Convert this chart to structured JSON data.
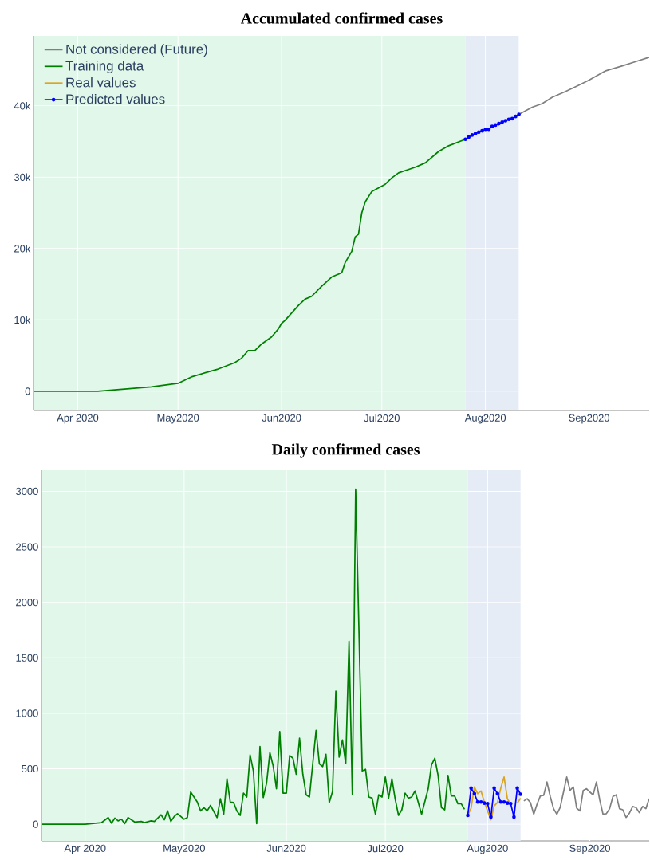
{
  "chart_data": [
    {
      "type": "line",
      "title": "Accumulated confirmed cases",
      "xlim": [
        "2020-03-19",
        "2020-09-19"
      ],
      "xticks": [
        {
          "value": "2020-04-01",
          "label": "Apr 2020"
        },
        {
          "value": "2020-05-01",
          "label": "May2020"
        },
        {
          "value": "2020-06-01",
          "label": "Jun2020"
        },
        {
          "value": "2020-07-01",
          "label": "Jul2020"
        },
        {
          "value": "2020-08-01",
          "label": "Aug2020"
        },
        {
          "value": "2020-09-01",
          "label": "Sep2020"
        }
      ],
      "ylim": [
        -2700,
        49800
      ],
      "yticks": [
        0,
        {
          "value": 10000,
          "label": "10k"
        },
        {
          "value": 20000,
          "label": "20k"
        },
        {
          "value": 30000,
          "label": "30k"
        },
        {
          "value": 40000,
          "label": "40k"
        }
      ],
      "grid": true,
      "legend": "top left",
      "bands": [
        {
          "axis": "x",
          "from": "2020-03-19",
          "to": "2020-07-26",
          "color": "#e0f7ea"
        },
        {
          "axis": "x",
          "from": "2020-07-26",
          "to": "2020-08-11",
          "color": "#e5ecf6"
        }
      ],
      "series": [
        {
          "name": "Not considered  (Future)",
          "color": "#808080",
          "marker": "none",
          "x": [
            "2020-08-11",
            "2020-08-15",
            "2020-08-18",
            "2020-08-21",
            "2020-08-25",
            "2020-08-29",
            "2020-09-01",
            "2020-09-06",
            "2020-09-11",
            "2020-09-15",
            "2020-09-19"
          ],
          "values": [
            38800,
            39800,
            40300,
            41200,
            42000,
            42900,
            43600,
            44900,
            45600,
            46200,
            46800
          ]
        },
        {
          "name": "Training data",
          "color": "#008000",
          "marker": "none",
          "x": [
            "2020-03-19",
            "2020-04-07",
            "2020-04-23",
            "2020-05-01",
            "2020-05-05",
            "2020-05-10",
            "2020-05-13",
            "2020-05-18",
            "2020-05-20",
            "2020-05-22",
            "2020-05-24",
            "2020-05-26",
            "2020-05-29",
            "2020-05-31",
            "2020-06-01",
            "2020-06-02",
            "2020-06-06",
            "2020-06-08",
            "2020-06-10",
            "2020-06-13",
            "2020-06-16",
            "2020-06-19",
            "2020-06-20",
            "2020-06-22",
            "2020-06-23",
            "2020-06-24",
            "2020-06-25",
            "2020-06-26",
            "2020-06-28",
            "2020-07-02",
            "2020-07-04",
            "2020-07-06",
            "2020-07-11",
            "2020-07-14",
            "2020-07-18",
            "2020-07-21",
            "2020-07-26"
          ],
          "values": [
            0,
            0,
            600,
            1100,
            2000,
            2700,
            3100,
            4000,
            4600,
            5700,
            5700,
            6600,
            7600,
            8700,
            9500,
            9900,
            12000,
            12900,
            13300,
            14700,
            16000,
            16600,
            18000,
            19600,
            21600,
            22000,
            25000,
            26500,
            28000,
            29000,
            29900,
            30600,
            31400,
            32000,
            33600,
            34400,
            35300
          ]
        },
        {
          "name": "Real values",
          "color": "#daa520",
          "marker": "none",
          "values": [
            null,
            null,
            null,
            null,
            null,
            null,
            null,
            null,
            null,
            null,
            null,
            null,
            null,
            null,
            null,
            null,
            null
          ]
        },
        {
          "name": "Predicted values",
          "color": "#0000ff",
          "marker": "circle",
          "x": [
            "2020-07-26",
            "2020-07-27",
            "2020-07-28",
            "2020-07-29",
            "2020-07-30",
            "2020-07-31",
            "2020-08-01",
            "2020-08-02",
            "2020-08-03",
            "2020-08-04",
            "2020-08-05",
            "2020-08-06",
            "2020-08-07",
            "2020-08-08",
            "2020-08-09",
            "2020-08-10",
            "2020-08-11"
          ],
          "values": [
            35300,
            35600,
            35900,
            36100,
            36300,
            36500,
            36700,
            36700,
            37100,
            37300,
            37500,
            37700,
            37900,
            38100,
            38200,
            38500,
            38800
          ]
        }
      ]
    },
    {
      "type": "line",
      "title": "Daily confirmed cases",
      "xlim": [
        "2020-03-19",
        "2020-09-19"
      ],
      "xticks": [
        {
          "value": "2020-04-01",
          "label": "Apr 2020"
        },
        {
          "value": "2020-05-01",
          "label": "May2020"
        },
        {
          "value": "2020-06-01",
          "label": "Jun2020"
        },
        {
          "value": "2020-07-01",
          "label": "Jul2020"
        },
        {
          "value": "2020-08-01",
          "label": "Aug2020"
        },
        {
          "value": "2020-09-01",
          "label": "Sep2020"
        }
      ],
      "ylim": [
        -150,
        3190
      ],
      "yticks": [
        0,
        500,
        1000,
        1500,
        2000,
        2500,
        3000
      ],
      "grid": true,
      "bands": [
        {
          "axis": "x",
          "from": "2020-03-19",
          "to": "2020-07-26",
          "color": "#e0f7ea"
        },
        {
          "axis": "x",
          "from": "2020-07-26",
          "to": "2020-08-11",
          "color": "#e5ecf6"
        }
      ],
      "series": [
        {
          "color": "#808080",
          "marker": "none",
          "x": [
            "2020-08-12",
            "2020-08-13",
            "2020-08-14",
            "2020-08-15",
            "2020-08-16",
            "2020-08-17",
            "2020-08-18",
            "2020-08-19",
            "2020-08-20",
            "2020-08-21",
            "2020-08-22",
            "2020-08-23",
            "2020-08-25",
            "2020-08-26",
            "2020-08-27",
            "2020-08-28",
            "2020-08-29",
            "2020-08-30",
            "2020-08-31",
            "2020-09-01",
            "2020-09-02",
            "2020-09-03",
            "2020-09-04",
            "2020-09-05",
            "2020-09-06",
            "2020-09-07",
            "2020-09-08",
            "2020-09-09",
            "2020-09-10",
            "2020-09-11",
            "2020-09-12",
            "2020-09-13",
            "2020-09-14",
            "2020-09-15",
            "2020-09-16",
            "2020-09-17",
            "2020-09-18",
            "2020-09-19"
          ],
          "values": [
            210,
            230,
            195,
            90,
            180,
            255,
            260,
            380,
            250,
            140,
            90,
            150,
            425,
            305,
            335,
            145,
            120,
            305,
            320,
            290,
            265,
            380,
            220,
            90,
            95,
            140,
            250,
            265,
            140,
            130,
            60,
            100,
            160,
            150,
            105,
            160,
            140,
            230
          ]
        },
        {
          "color": "#008000",
          "marker": "none",
          "x": [
            "2020-03-19",
            "2020-04-01",
            "2020-04-06",
            "2020-04-08",
            "2020-04-09",
            "2020-04-10",
            "2020-04-11",
            "2020-04-12",
            "2020-04-13",
            "2020-04-14",
            "2020-04-16",
            "2020-04-18",
            "2020-04-19",
            "2020-04-21",
            "2020-04-22",
            "2020-04-24",
            "2020-04-25",
            "2020-04-26",
            "2020-04-27",
            "2020-04-28",
            "2020-04-29",
            "2020-05-01",
            "2020-05-02",
            "2020-05-03",
            "2020-05-05",
            "2020-05-06",
            "2020-05-07",
            "2020-05-08",
            "2020-05-09",
            "2020-05-11",
            "2020-05-12",
            "2020-05-13",
            "2020-05-14",
            "2020-05-15",
            "2020-05-16",
            "2020-05-17",
            "2020-05-18",
            "2020-05-19",
            "2020-05-20",
            "2020-05-21",
            "2020-05-22",
            "2020-05-23",
            "2020-05-24",
            "2020-05-25",
            "2020-05-26",
            "2020-05-27",
            "2020-05-28",
            "2020-05-29",
            "2020-05-30",
            "2020-05-31",
            "2020-06-01",
            "2020-06-02",
            "2020-06-03",
            "2020-06-04",
            "2020-06-05",
            "2020-06-06",
            "2020-06-07",
            "2020-06-08",
            "2020-06-10",
            "2020-06-11",
            "2020-06-12",
            "2020-06-13",
            "2020-06-14",
            "2020-06-15",
            "2020-06-16",
            "2020-06-17",
            "2020-06-18",
            "2020-06-19",
            "2020-06-20",
            "2020-06-21",
            "2020-06-22",
            "2020-06-24",
            "2020-06-25",
            "2020-06-26",
            "2020-06-27",
            "2020-06-28",
            "2020-06-29",
            "2020-06-30",
            "2020-07-01",
            "2020-07-02",
            "2020-07-03",
            "2020-07-04",
            "2020-07-05",
            "2020-07-06",
            "2020-07-07",
            "2020-07-08",
            "2020-07-09",
            "2020-07-10",
            "2020-07-12",
            "2020-07-14",
            "2020-07-15",
            "2020-07-16",
            "2020-07-17",
            "2020-07-18",
            "2020-07-19",
            "2020-07-20",
            "2020-07-21",
            "2020-07-22",
            "2020-07-23",
            "2020-07-24",
            "2020-07-25"
          ],
          "values": [
            0,
            0,
            15,
            60,
            10,
            55,
            30,
            45,
            5,
            60,
            20,
            25,
            15,
            30,
            25,
            85,
            40,
            120,
            25,
            70,
            95,
            45,
            60,
            290,
            200,
            120,
            150,
            120,
            170,
            60,
            230,
            90,
            410,
            200,
            195,
            120,
            80,
            280,
            245,
            625,
            480,
            5,
            700,
            240,
            370,
            645,
            525,
            320,
            835,
            280,
            280,
            620,
            595,
            450,
            775,
            450,
            265,
            245,
            845,
            545,
            520,
            630,
            195,
            295,
            1200,
            605,
            760,
            545,
            1650,
            265,
            3020,
            480,
            495,
            245,
            235,
            90,
            265,
            245,
            425,
            235,
            410,
            225,
            80,
            130,
            280,
            235,
            245,
            300,
            90,
            320,
            535,
            595,
            440,
            150,
            130,
            440,
            255,
            255,
            185,
            185,
            135
          ]
        },
        {
          "color": "#daa520",
          "marker": "none",
          "x": [
            "2020-07-26",
            "2020-07-27",
            "2020-07-28",
            "2020-07-29",
            "2020-07-30",
            "2020-07-31",
            "2020-08-01",
            "2020-08-02",
            "2020-08-03",
            "2020-08-04",
            "2020-08-05",
            "2020-08-06",
            "2020-08-07",
            "2020-08-08",
            "2020-08-09",
            "2020-08-10",
            "2020-08-11"
          ],
          "values": [
            80,
            145,
            335,
            275,
            300,
            200,
            120,
            40,
            165,
            195,
            325,
            425,
            230,
            180,
            null,
            190,
            235
          ]
        },
        {
          "color": "#0000ff",
          "marker": "circle",
          "x": [
            "2020-07-26",
            "2020-07-27",
            "2020-07-28",
            "2020-07-29",
            "2020-07-30",
            "2020-07-31",
            "2020-08-01",
            "2020-08-02",
            "2020-08-03",
            "2020-08-04",
            "2020-08-05",
            "2020-08-06",
            "2020-08-07",
            "2020-08-08",
            "2020-08-09",
            "2020-08-10",
            "2020-08-11"
          ],
          "values": [
            80,
            325,
            275,
            200,
            200,
            190,
            185,
            65,
            325,
            275,
            200,
            200,
            190,
            185,
            65,
            325,
            270
          ]
        }
      ]
    }
  ]
}
